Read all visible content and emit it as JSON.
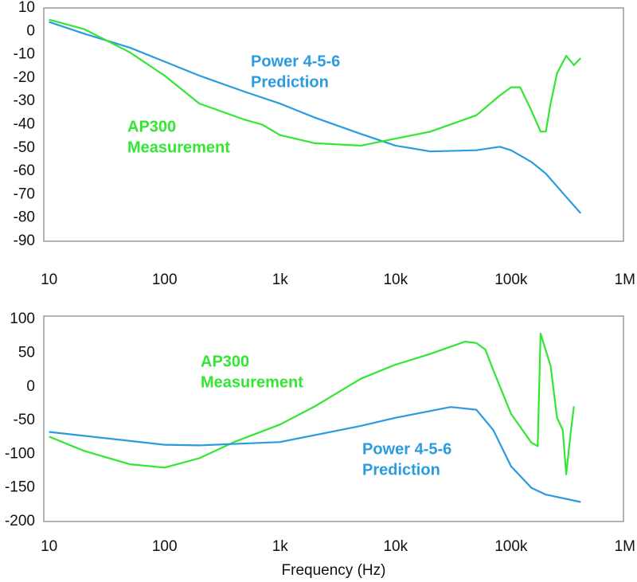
{
  "chart_data": [
    {
      "type": "line",
      "xscale": "log",
      "xlim": [
        9,
        940000
      ],
      "ylim": [
        -90,
        10
      ],
      "yticks": [
        10,
        0,
        -10,
        -20,
        -30,
        -40,
        -50,
        -60,
        -70,
        -80,
        -90
      ],
      "xticks": [
        10,
        100,
        {
          "value": 1000,
          "label": "1k"
        },
        {
          "value": 10000,
          "label": "10k"
        },
        {
          "value": 100000,
          "label": "100k"
        },
        {
          "value": 1000000,
          "label": "1M"
        }
      ],
      "series": [
        {
          "label_lines": [
            "Power 4-5-6",
            "Prediction"
          ],
          "color": "#2b9be0",
          "x": [
            10,
            20,
            50,
            100,
            200,
            500,
            1000,
            2000,
            5000,
            10000,
            20000,
            50000,
            80000,
            100000,
            150000,
            200000,
            300000,
            400000
          ],
          "values": [
            4,
            -1,
            -7,
            -13,
            -19,
            -26,
            -31,
            -37,
            -44,
            -49,
            -51.5,
            -51,
            -49.5,
            -51,
            -56,
            -61,
            -71,
            -78
          ]
        },
        {
          "label_lines": [
            "AP300",
            "Measurement"
          ],
          "color": "#33e633",
          "x": [
            10,
            20,
            50,
            100,
            200,
            500,
            700,
            1000,
            2000,
            5000,
            10000,
            20000,
            50000,
            80000,
            100000,
            120000,
            150000,
            180000,
            200000,
            220000,
            250000,
            300000,
            350000,
            400000
          ],
          "values": [
            5,
            1,
            -9,
            -19,
            -31,
            -38,
            -40,
            -44.5,
            -48,
            -49,
            -46,
            -43,
            -36,
            -27.5,
            -24,
            -24,
            -34,
            -43,
            -43,
            -31,
            -18,
            -10.5,
            -14.5,
            -11.5
          ]
        }
      ]
    },
    {
      "type": "line",
      "xscale": "log",
      "xlim": [
        9,
        940000
      ],
      "ylim": [
        -200,
        105
      ],
      "yticks": [
        100,
        50,
        0,
        -50,
        -100,
        -150,
        -200
      ],
      "xticks": [
        10,
        100,
        {
          "value": 1000,
          "label": "1k"
        },
        {
          "value": 10000,
          "label": "10k"
        },
        {
          "value": 100000,
          "label": "100k"
        },
        {
          "value": 1000000,
          "label": "1M"
        }
      ],
      "xlabel": "Frequency (Hz)",
      "series": [
        {
          "label_lines": [
            "AP300",
            "Measurement"
          ],
          "color": "#33e633",
          "x": [
            10,
            20,
            50,
            100,
            200,
            400,
            1000,
            2000,
            5000,
            10000,
            12000,
            20000,
            40000,
            50000,
            60000,
            70000,
            100000,
            150000,
            170000,
            180000,
            220000,
            250000,
            280000,
            300000,
            330000,
            350000
          ],
          "values": [
            -74,
            -95,
            -115,
            -120,
            -106,
            -82,
            -56,
            -29,
            12,
            33,
            37,
            49,
            67,
            65,
            55,
            25,
            -40,
            -83,
            -88,
            79,
            31,
            -46,
            -64,
            -130,
            -64,
            -29
          ]
        },
        {
          "label_lines": [
            "Power 4-5-6",
            "Prediction"
          ],
          "color": "#2b9be0",
          "x": [
            10,
            100,
            200,
            1000,
            5000,
            10000,
            30000,
            50000,
            70000,
            100000,
            150000,
            200000,
            400000
          ],
          "values": [
            -67,
            -86,
            -87,
            -82,
            -58,
            -46,
            -30,
            -34,
            -64,
            -118,
            -150,
            -160,
            -171
          ]
        }
      ]
    }
  ]
}
